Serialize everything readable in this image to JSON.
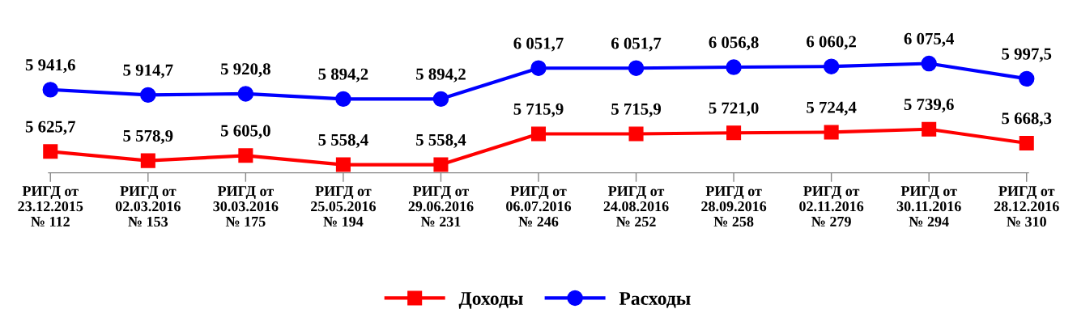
{
  "chart_data": {
    "type": "line",
    "categories": [
      "РИГД от\n23.12.2015\n№ 112",
      "РИГД от\n02.03.2016\n№ 153",
      "РИГД от\n30.03.2016\n№ 175",
      "РИГД от\n25.05.2016\n№ 194",
      "РИГД от\n29.06.2016\n№ 231",
      "РИГД от\n06.07.2016\n№ 246",
      "РИГД от\n24.08.2016\n№ 252",
      "РИГД от\n28.09.2016\n№ 258",
      "РИГД от\n02.11.2016\n№ 279",
      "РИГД от\n30.11.2016\n№ 294",
      "РИГД от\n28.12.2016\n№ 310"
    ],
    "series": [
      {
        "name": "Доходы",
        "color": "#ff0000",
        "marker": "square",
        "values": [
          5625.7,
          5578.9,
          5605.0,
          5558.4,
          5558.4,
          5715.9,
          5715.9,
          5721.0,
          5724.4,
          5739.6,
          5668.3
        ],
        "value_labels": [
          "5 625,7",
          "5 578,9",
          "5 605,0",
          "5 558,4",
          "5 558,4",
          "5 715,9",
          "5 715,9",
          "5 721,0",
          "5 724,4",
          "5 739,6",
          "5 668,3"
        ]
      },
      {
        "name": "Расходы",
        "color": "#0000ff",
        "marker": "circle",
        "values": [
          5941.6,
          5914.7,
          5920.8,
          5894.2,
          5894.2,
          6051.7,
          6051.7,
          6056.8,
          6060.2,
          6075.4,
          5997.5
        ],
        "value_labels": [
          "5 941,6",
          "5 914,7",
          "5 920,8",
          "5 894,2",
          "5 894,2",
          "6 051,7",
          "6 051,7",
          "6 056,8",
          "6 060,2",
          "6 075,4",
          "5 997,5"
        ]
      }
    ],
    "legend": "bottom",
    "grid": false,
    "line_style": "solid"
  }
}
